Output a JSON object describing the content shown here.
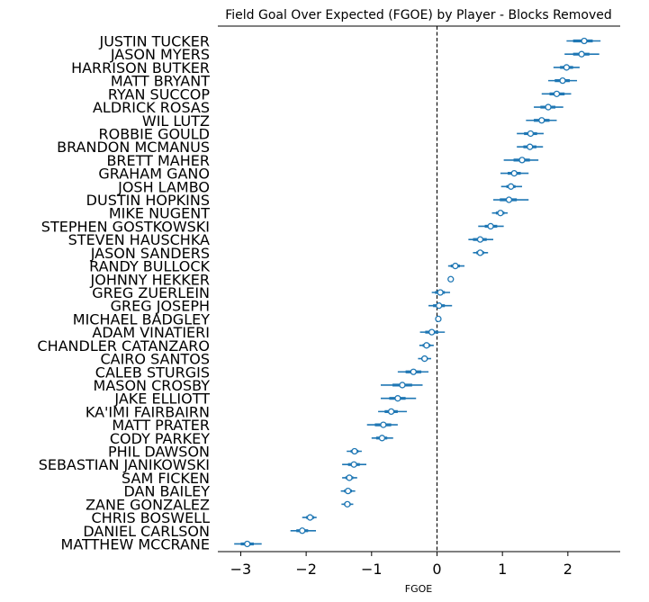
{
  "chart_data": {
    "type": "forest",
    "title": "Field Goal Over Expected (FGOE) by Player - Blocks Removed",
    "xlabel": "FGOE",
    "ylabel": "",
    "xlim": [
      -3.35,
      2.8
    ],
    "xticks": [
      -3,
      -2,
      -1,
      0,
      1,
      2
    ],
    "xtick_labels": [
      "−3",
      "−2",
      "−1",
      "0",
      "1",
      "2"
    ],
    "reference_line_x": 0,
    "marker_color": "#1f77b4",
    "players": [
      {
        "name": "JUSTIN TUCKER",
        "mean": 2.25,
        "inner": [
          2.08,
          2.38
        ],
        "outer": [
          1.98,
          2.5
        ]
      },
      {
        "name": "JASON MYERS",
        "mean": 2.21,
        "inner": [
          2.08,
          2.33
        ],
        "outer": [
          1.95,
          2.48
        ]
      },
      {
        "name": "HARRISON BUTKER",
        "mean": 1.98,
        "inner": [
          1.88,
          2.08
        ],
        "outer": [
          1.78,
          2.18
        ]
      },
      {
        "name": "MATT BRYANT",
        "mean": 1.92,
        "inner": [
          1.8,
          2.03
        ],
        "outer": [
          1.7,
          2.14
        ]
      },
      {
        "name": "RYAN SUCCOP",
        "mean": 1.83,
        "inner": [
          1.72,
          1.95
        ],
        "outer": [
          1.6,
          2.05
        ]
      },
      {
        "name": "ALDRICK ROSAS",
        "mean": 1.7,
        "inner": [
          1.58,
          1.81
        ],
        "outer": [
          1.48,
          1.93
        ]
      },
      {
        "name": "WIL LUTZ",
        "mean": 1.6,
        "inner": [
          1.48,
          1.72
        ],
        "outer": [
          1.36,
          1.83
        ]
      },
      {
        "name": "ROBBIE GOULD",
        "mean": 1.43,
        "inner": [
          1.33,
          1.53
        ],
        "outer": [
          1.22,
          1.63
        ]
      },
      {
        "name": "BRANDON MCMANUS",
        "mean": 1.42,
        "inner": [
          1.32,
          1.52
        ],
        "outer": [
          1.22,
          1.62
        ]
      },
      {
        "name": "BRETT MAHER",
        "mean": 1.3,
        "inner": [
          1.17,
          1.42
        ],
        "outer": [
          1.02,
          1.55
        ]
      },
      {
        "name": "GRAHAM GANO",
        "mean": 1.18,
        "inner": [
          1.08,
          1.28
        ],
        "outer": [
          0.97,
          1.4
        ]
      },
      {
        "name": "JOSH LAMBO",
        "mean": 1.13,
        "inner": [
          1.06,
          1.2
        ],
        "outer": [
          0.98,
          1.3
        ]
      },
      {
        "name": "DUSTIN HOPKINS",
        "mean": 1.1,
        "inner": [
          0.96,
          1.22
        ],
        "outer": [
          0.86,
          1.4
        ]
      },
      {
        "name": "MIKE NUGENT",
        "mean": 0.97,
        "inner": [
          0.9,
          1.03
        ],
        "outer": [
          0.84,
          1.08
        ]
      },
      {
        "name": "STEPHEN GOSTKOWSKI",
        "mean": 0.82,
        "inner": [
          0.73,
          0.92
        ],
        "outer": [
          0.63,
          1.02
        ]
      },
      {
        "name": "STEVEN HAUSCHKA",
        "mean": 0.66,
        "inner": [
          0.55,
          0.76
        ],
        "outer": [
          0.48,
          0.86
        ]
      },
      {
        "name": "JASON SANDERS",
        "mean": 0.66,
        "inner": [
          0.6,
          0.72
        ],
        "outer": [
          0.55,
          0.78
        ]
      },
      {
        "name": "RANDY BULLOCK",
        "mean": 0.28,
        "inner": [
          0.21,
          0.35
        ],
        "outer": [
          0.17,
          0.42
        ]
      },
      {
        "name": "JOHNNY HEKKER",
        "mean": 0.21,
        "inner": [
          0.21,
          0.21
        ],
        "outer": [
          0.21,
          0.21
        ]
      },
      {
        "name": "GREG ZUERLEIN",
        "mean": 0.05,
        "inner": [
          -0.03,
          0.12
        ],
        "outer": [
          -0.08,
          0.2
        ]
      },
      {
        "name": "GREG JOSEPH",
        "mean": 0.03,
        "inner": [
          -0.06,
          0.12
        ],
        "outer": [
          -0.13,
          0.23
        ]
      },
      {
        "name": "MICHAEL BADGLEY",
        "mean": 0.02,
        "inner": [
          0.02,
          0.02
        ],
        "outer": [
          0.02,
          0.02
        ]
      },
      {
        "name": "ADAM VINATIERI",
        "mean": -0.08,
        "inner": [
          -0.18,
          0.02
        ],
        "outer": [
          -0.26,
          0.12
        ]
      },
      {
        "name": "CHANDLER CATANZARO",
        "mean": -0.16,
        "inner": [
          -0.22,
          -0.1
        ],
        "outer": [
          -0.27,
          -0.05
        ]
      },
      {
        "name": "CAIRO SANTOS",
        "mean": -0.19,
        "inner": [
          -0.24,
          -0.14
        ],
        "outer": [
          -0.29,
          -0.09
        ]
      },
      {
        "name": "CALEB STURGIS",
        "mean": -0.36,
        "inner": [
          -0.48,
          -0.24
        ],
        "outer": [
          -0.6,
          -0.13
        ]
      },
      {
        "name": "MASON CROSBY",
        "mean": -0.53,
        "inner": [
          -0.68,
          -0.38
        ],
        "outer": [
          -0.86,
          -0.22
        ]
      },
      {
        "name": "JAKE ELLIOTT",
        "mean": -0.6,
        "inner": [
          -0.73,
          -0.48
        ],
        "outer": [
          -0.86,
          -0.32
        ]
      },
      {
        "name": "KA'IMI FAIRBAIRN",
        "mean": -0.7,
        "inner": [
          -0.8,
          -0.6
        ],
        "outer": [
          -0.9,
          -0.46
        ]
      },
      {
        "name": "MATT PRATER",
        "mean": -0.82,
        "inner": [
          -0.95,
          -0.7
        ],
        "outer": [
          -1.07,
          -0.6
        ]
      },
      {
        "name": "CODY PARKEY",
        "mean": -0.84,
        "inner": [
          -0.93,
          -0.76
        ],
        "outer": [
          -1.0,
          -0.67
        ]
      },
      {
        "name": "PHIL DAWSON",
        "mean": -1.26,
        "inner": [
          -1.32,
          -1.2
        ],
        "outer": [
          -1.38,
          -1.15
        ]
      },
      {
        "name": "SEBASTIAN JANIKOWSKI",
        "mean": -1.27,
        "inner": [
          -1.36,
          -1.18
        ],
        "outer": [
          -1.45,
          -1.08
        ]
      },
      {
        "name": "SAM FICKEN",
        "mean": -1.34,
        "inner": [
          -1.4,
          -1.28
        ],
        "outer": [
          -1.45,
          -1.22
        ]
      },
      {
        "name": "DAN BAILEY",
        "mean": -1.36,
        "inner": [
          -1.42,
          -1.3
        ],
        "outer": [
          -1.47,
          -1.25
        ]
      },
      {
        "name": "ZANE GONZALEZ",
        "mean": -1.37,
        "inner": [
          -1.42,
          -1.32
        ],
        "outer": [
          -1.46,
          -1.28
        ]
      },
      {
        "name": "CHRIS BOSWELL",
        "mean": -1.94,
        "inner": [
          -2.0,
          -1.88
        ],
        "outer": [
          -2.06,
          -1.84
        ]
      },
      {
        "name": "DANIEL CARLSON",
        "mean": -2.06,
        "inner": [
          -2.15,
          -1.97
        ],
        "outer": [
          -2.24,
          -1.85
        ]
      },
      {
        "name": "MATTHEW MCCRANE",
        "mean": -2.9,
        "inner": [
          -3.0,
          -2.8
        ],
        "outer": [
          -3.1,
          -2.68
        ]
      }
    ]
  }
}
